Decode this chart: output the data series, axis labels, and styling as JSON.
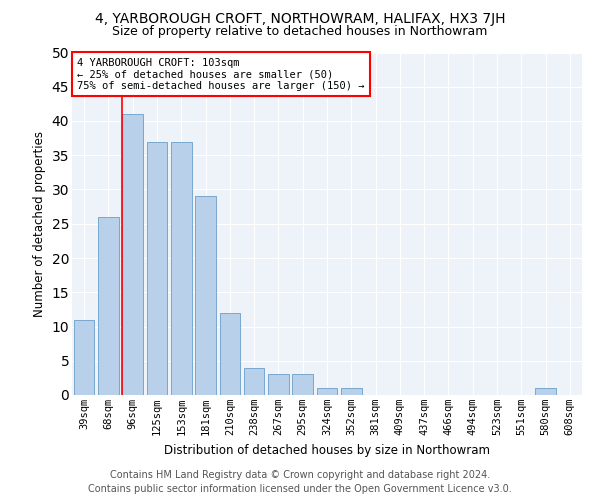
{
  "title": "4, YARBOROUGH CROFT, NORTHOWRAM, HALIFAX, HX3 7JH",
  "subtitle": "Size of property relative to detached houses in Northowram",
  "xlabel": "Distribution of detached houses by size in Northowram",
  "ylabel": "Number of detached properties",
  "categories": [
    "39sqm",
    "68sqm",
    "96sqm",
    "125sqm",
    "153sqm",
    "181sqm",
    "210sqm",
    "238sqm",
    "267sqm",
    "295sqm",
    "324sqm",
    "352sqm",
    "381sqm",
    "409sqm",
    "437sqm",
    "466sqm",
    "494sqm",
    "523sqm",
    "551sqm",
    "580sqm",
    "608sqm"
  ],
  "values": [
    11,
    26,
    41,
    37,
    37,
    29,
    12,
    4,
    3,
    3,
    1,
    1,
    0,
    0,
    0,
    0,
    0,
    0,
    0,
    1,
    0
  ],
  "bar_color": "#b8d0ea",
  "bar_edge_color": "#6a9ec8",
  "red_line_index": 2,
  "annotation_text": "4 YARBOROUGH CROFT: 103sqm\n← 25% of detached houses are smaller (50)\n75% of semi-detached houses are larger (150) →",
  "annotation_box_facecolor": "white",
  "annotation_box_edgecolor": "red",
  "ylim": [
    0,
    50
  ],
  "yticks": [
    0,
    5,
    10,
    15,
    20,
    25,
    30,
    35,
    40,
    45,
    50
  ],
  "footer1": "Contains HM Land Registry data © Crown copyright and database right 2024.",
  "footer2": "Contains public sector information licensed under the Open Government Licence v3.0.",
  "bg_color": "#eef2f9",
  "grid_color": "white",
  "title_fontsize": 10,
  "subtitle_fontsize": 9,
  "axis_label_fontsize": 8.5,
  "tick_fontsize": 7.5,
  "annotation_fontsize": 7.5,
  "footer_fontsize": 7
}
